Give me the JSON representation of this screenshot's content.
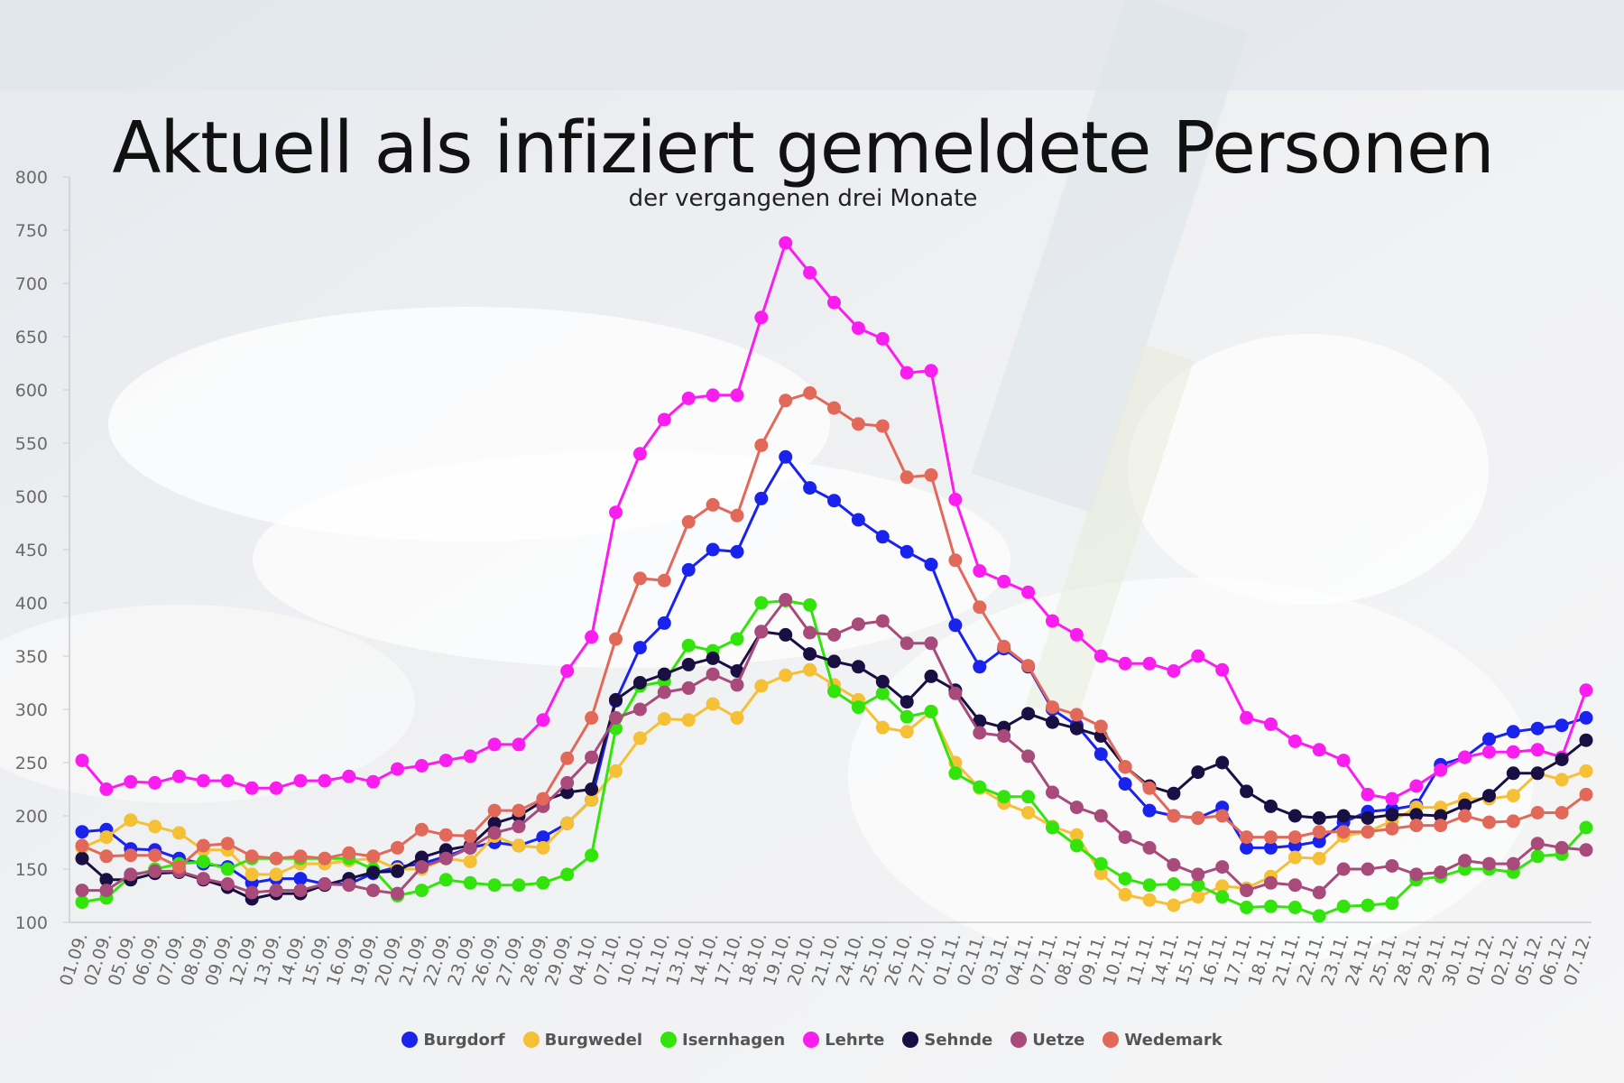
{
  "chart_data": {
    "type": "line",
    "title": "Aktuell als infiziert gemeldete Personen",
    "subtitle": "der vergangenen drei Monate",
    "xlabel": "",
    "ylabel": "",
    "ylim": [
      100,
      800
    ],
    "yticks": [
      100,
      150,
      200,
      250,
      300,
      350,
      400,
      450,
      500,
      550,
      600,
      650,
      700,
      750,
      800
    ],
    "legend_position": "bottom",
    "categories": [
      "01.09.",
      "02.09.",
      "05.09.",
      "06.09.",
      "07.09.",
      "08.09.",
      "09.09.",
      "12.09.",
      "13.09.",
      "14.09.",
      "15.09.",
      "16.09.",
      "19.09.",
      "20.09.",
      "21.09.",
      "22.09.",
      "23.09.",
      "26.09.",
      "27.09.",
      "28.09.",
      "29.09.",
      "04.10.",
      "07.10.",
      "10.10.",
      "11.10.",
      "13.10.",
      "14.10.",
      "17.10.",
      "18.10.",
      "19.10.",
      "20.10.",
      "21.10.",
      "24.10.",
      "25.10.",
      "26.10.",
      "27.10.",
      "01.11.",
      "02.11.",
      "03.11.",
      "04.11.",
      "07.11.",
      "08.11.",
      "09.11.",
      "10.11.",
      "11.11.",
      "14.11.",
      "15.11.",
      "16.11.",
      "17.11.",
      "18.11.",
      "21.11.",
      "22.11.",
      "23.11.",
      "24.11.",
      "25.11.",
      "28.11.",
      "29.11.",
      "30.11.",
      "01.12.",
      "02.12.",
      "05.12.",
      "06.12.",
      "07.12."
    ],
    "series": [
      {
        "name": "Burgdorf",
        "color": "#1a22ee",
        "values": [
          185,
          187,
          169,
          168,
          160,
          155,
          152,
          137,
          141,
          141,
          136,
          136,
          146,
          152,
          155,
          162,
          170,
          175,
          172,
          180,
          193,
          215,
          308,
          358,
          381,
          431,
          450,
          448,
          498,
          537,
          508,
          496,
          478,
          462,
          448,
          436,
          379,
          340,
          357,
          340,
          300,
          285,
          258,
          230,
          205,
          200,
          198,
          208,
          170,
          170,
          172,
          176,
          194,
          204,
          206,
          210,
          248,
          255,
          272,
          279,
          282,
          285,
          292
        ]
      },
      {
        "name": "Burgwedel",
        "color": "#f5c035",
        "values": [
          170,
          180,
          196,
          190,
          184,
          168,
          168,
          145,
          145,
          155,
          155,
          158,
          160,
          150,
          150,
          160,
          157,
          181,
          172,
          170,
          193,
          215,
          242,
          273,
          291,
          290,
          305,
          292,
          322,
          332,
          337,
          323,
          309,
          283,
          279,
          298,
          250,
          226,
          212,
          203,
          190,
          182,
          146,
          126,
          121,
          116,
          124,
          134,
          132,
          143,
          161,
          160,
          181,
          185,
          195,
          208,
          208,
          216,
          216,
          219,
          240,
          234,
          242
        ]
      },
      {
        "name": "Isernhagen",
        "color": "#33e40c",
        "values": [
          119,
          123,
          143,
          150,
          155,
          157,
          150,
          160,
          160,
          160,
          160,
          160,
          150,
          125,
          130,
          140,
          137,
          135,
          135,
          137,
          145,
          163,
          282,
          322,
          326,
          360,
          355,
          366,
          400,
          402,
          398,
          317,
          302,
          315,
          293,
          298,
          240,
          227,
          218,
          218,
          189,
          172,
          155,
          141,
          135,
          136,
          135,
          124,
          114,
          115,
          114,
          106,
          115,
          116,
          118,
          140,
          143,
          150,
          150,
          147,
          162,
          164,
          189
        ]
      },
      {
        "name": "Lehrte",
        "color": "#fa1df0",
        "values": [
          252,
          225,
          232,
          231,
          237,
          233,
          233,
          226,
          226,
          233,
          233,
          237,
          232,
          244,
          247,
          252,
          256,
          267,
          267,
          290,
          336,
          368,
          485,
          540,
          572,
          592,
          595,
          595,
          668,
          738,
          710,
          682,
          658,
          648,
          616,
          618,
          497,
          430,
          420,
          410,
          383,
          370,
          350,
          343,
          343,
          336,
          350,
          337,
          292,
          286,
          270,
          262,
          252,
          220,
          216,
          228,
          243,
          255,
          260,
          260,
          262,
          255,
          318
        ]
      },
      {
        "name": "Sehnde",
        "color": "#1a0f42",
        "values": [
          160,
          140,
          140,
          146,
          147,
          140,
          133,
          122,
          127,
          127,
          135,
          141,
          147,
          148,
          161,
          168,
          172,
          193,
          200,
          214,
          222,
          225,
          309,
          325,
          333,
          342,
          348,
          336,
          373,
          370,
          352,
          345,
          340,
          326,
          307,
          331,
          318,
          289,
          283,
          296,
          288,
          282,
          275,
          246,
          228,
          221,
          241,
          250,
          223,
          209,
          200,
          198,
          200,
          198,
          201,
          201,
          200,
          210,
          219,
          240,
          240,
          253,
          271
        ]
      },
      {
        "name": "Uetze",
        "color": "#a84a7a",
        "values": [
          130,
          130,
          145,
          148,
          148,
          141,
          136,
          128,
          130,
          130,
          136,
          135,
          130,
          127,
          152,
          160,
          170,
          184,
          190,
          209,
          231,
          255,
          292,
          300,
          316,
          320,
          333,
          323,
          373,
          403,
          372,
          370,
          380,
          383,
          362,
          362,
          315,
          278,
          275,
          256,
          222,
          208,
          200,
          180,
          170,
          154,
          145,
          152,
          130,
          137,
          135,
          128,
          150,
          150,
          153,
          145,
          147,
          158,
          155,
          155,
          174,
          170,
          168
        ]
      },
      {
        "name": "Wedemark",
        "color": "#e2695a",
        "values": [
          172,
          162,
          163,
          163,
          152,
          172,
          174,
          162,
          160,
          162,
          160,
          165,
          162,
          170,
          187,
          182,
          181,
          205,
          205,
          216,
          254,
          292,
          366,
          423,
          421,
          476,
          492,
          482,
          548,
          590,
          597,
          583,
          568,
          566,
          518,
          520,
          440,
          396,
          359,
          341,
          302,
          295,
          284,
          246,
          226,
          200,
          198,
          200,
          180,
          180,
          180,
          185,
          185,
          185,
          188,
          191,
          191,
          200,
          194,
          195,
          203,
          203,
          220
        ]
      }
    ]
  }
}
